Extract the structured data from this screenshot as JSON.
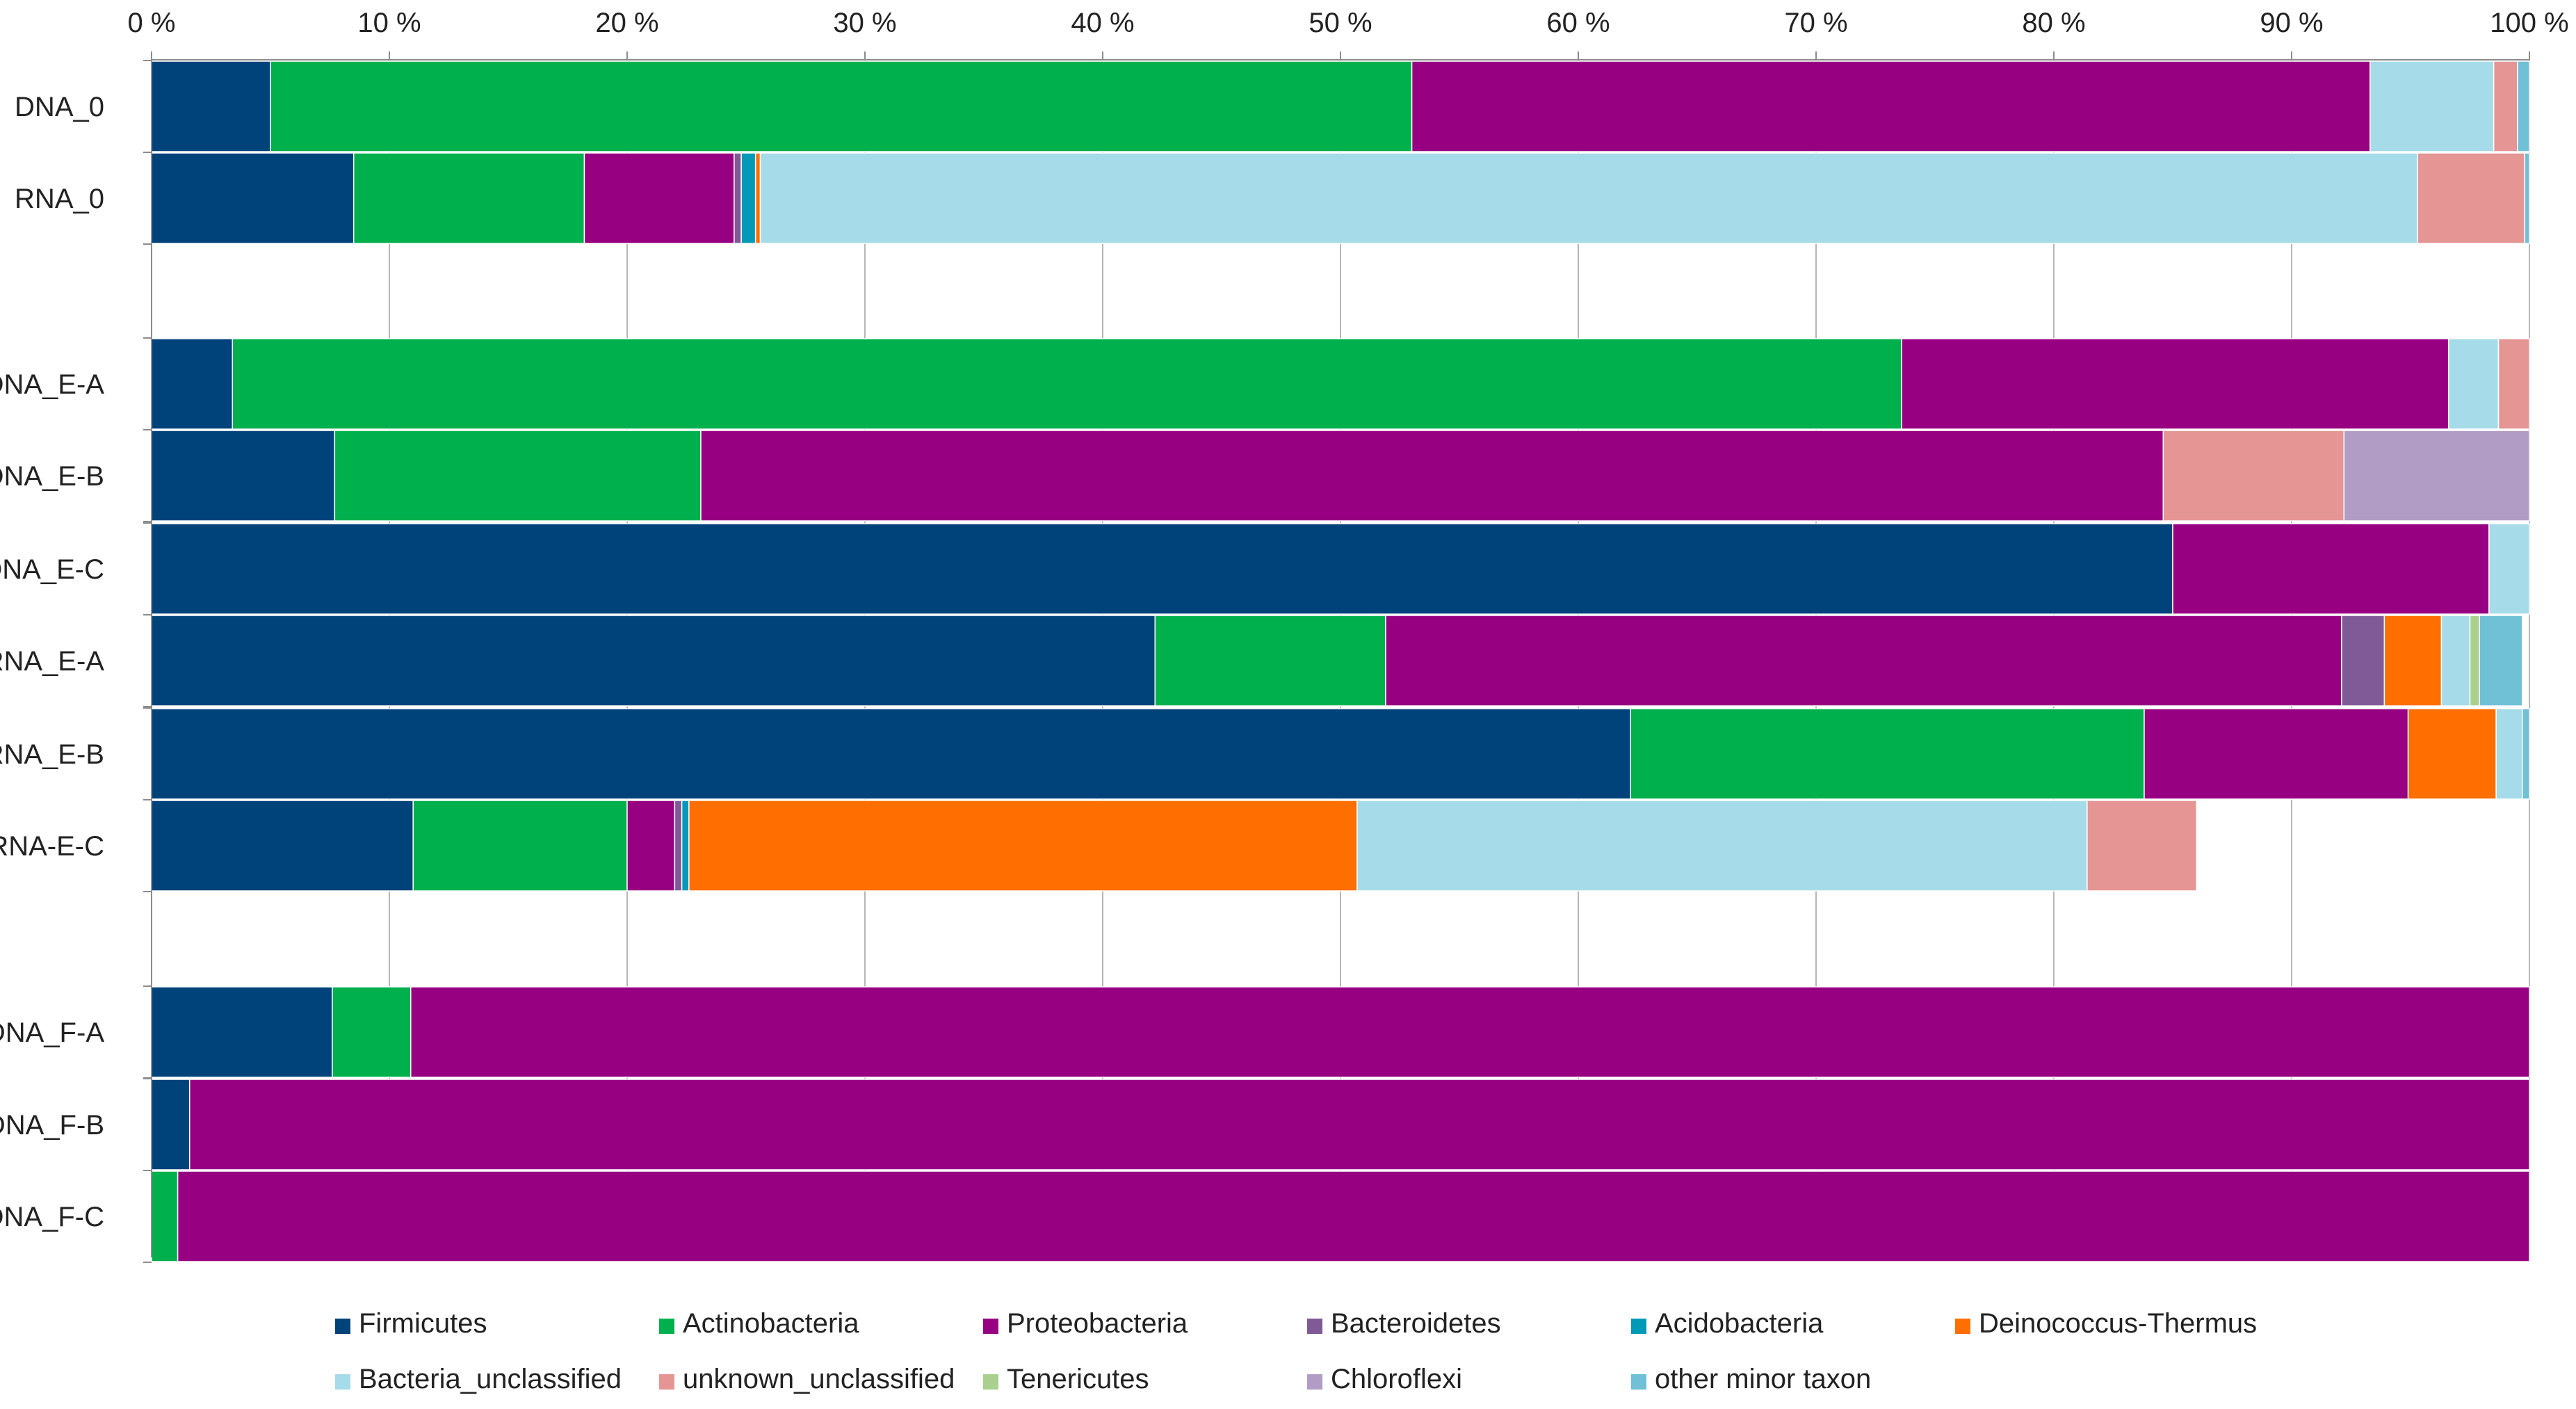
{
  "chart_data": {
    "type": "bar",
    "orientation": "horizontal",
    "stacked": true,
    "percent": true,
    "title": "",
    "xlabel": "",
    "ylabel": "",
    "xlim": [
      0,
      100
    ],
    "x_ticks": [
      "0 %",
      "10 %",
      "20 %",
      "30 %",
      "40 %",
      "50 %",
      "60 %",
      "70 %",
      "80 %",
      "90 %",
      "100 %"
    ],
    "x_axis_position": "top",
    "grid": true,
    "legend_position": "bottom",
    "groups": [
      [
        "DNA_0",
        "RNA_0"
      ],
      [
        "DNA_E-A",
        "DNA_E-B",
        "DNA_E-C",
        "RNA_E-A",
        "RNA_E-B",
        "RNA-E-C"
      ],
      [
        "DNA_F-A",
        "DNA_F-B",
        "DNA_F-C"
      ]
    ],
    "categories": [
      "DNA_0",
      "RNA_0",
      "DNA_E-A",
      "DNA_E-B",
      "DNA_E-C",
      "RNA_E-A",
      "RNA_E-B",
      "RNA-E-C",
      "DNA_F-A",
      "DNA_F-B",
      "DNA_F-C"
    ],
    "series": [
      {
        "name": "Firmicutes",
        "color": "#00427a",
        "values": [
          5.0,
          8.5,
          3.4,
          7.7,
          85.0,
          42.2,
          62.2,
          11.0,
          7.6,
          1.6,
          0.0
        ]
      },
      {
        "name": "Actinobacteria",
        "color": "#00b04d",
        "values": [
          48.0,
          9.7,
          70.2,
          15.4,
          0.0,
          9.7,
          21.6,
          9.0,
          3.3,
          0.0,
          1.1
        ]
      },
      {
        "name": "Proteobacteria",
        "color": "#980082",
        "values": [
          40.3,
          6.3,
          23.0,
          61.5,
          13.3,
          40.2,
          11.1,
          2.0,
          89.1,
          98.4,
          98.9
        ]
      },
      {
        "name": "Bacteroidetes",
        "color": "#7f5a97",
        "values": [
          0.0,
          0.3,
          0.0,
          0.0,
          0.0,
          1.8,
          0.0,
          0.3,
          0.0,
          0.0,
          0.0
        ]
      },
      {
        "name": "Acidobacteria",
        "color": "#0099b7",
        "values": [
          0.0,
          0.6,
          0.0,
          0.0,
          0.0,
          0.0,
          0.0,
          0.3,
          0.0,
          0.0,
          0.0
        ]
      },
      {
        "name": "Deinococcus-Thermus",
        "color": "#ff6e00",
        "values": [
          0.0,
          0.2,
          0.0,
          0.0,
          0.0,
          2.4,
          3.7,
          28.1,
          0.0,
          0.0,
          0.0
        ]
      },
      {
        "name": "Bacteria_unclassified",
        "color": "#a6dce9",
        "values": [
          5.2,
          69.7,
          2.1,
          0.0,
          1.7,
          1.2,
          1.1,
          30.7,
          0.0,
          0.0,
          0.0
        ]
      },
      {
        "name": "unknown_unclassified",
        "color": "#e49594",
        "values": [
          1.0,
          4.5,
          1.3,
          7.6,
          0.0,
          0.0,
          0.0,
          4.6,
          0.0,
          0.0,
          0.0
        ]
      },
      {
        "name": "Tenericutes",
        "color": "#a9d08e",
        "values": [
          0.0,
          0.0,
          0.0,
          0.0,
          0.0,
          0.4,
          0.0,
          0.0,
          0.0,
          0.0,
          0.0
        ]
      },
      {
        "name": "Chloroflexi",
        "color": "#b09cc4",
        "values": [
          0.0,
          0.0,
          0.0,
          7.8,
          0.0,
          0.0,
          0.0,
          0.0,
          0.0,
          0.0,
          0.0
        ]
      },
      {
        "name": "other minor taxon",
        "color": "#70c0d6",
        "values": [
          0.5,
          0.2,
          0.0,
          0.0,
          0.0,
          1.8,
          0.3,
          0.0,
          0.0,
          0.0,
          0.0
        ]
      }
    ]
  }
}
